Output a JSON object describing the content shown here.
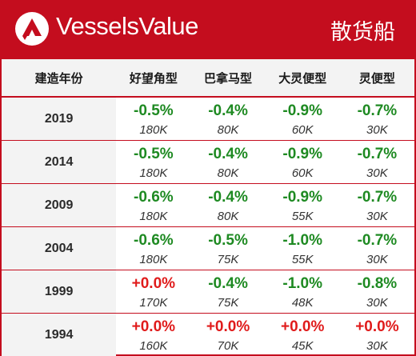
{
  "header": {
    "brand": "VesselsValue",
    "title": "散货船",
    "logo_icon": "vesselsvalue-logo-icon",
    "color": "#c40d1e"
  },
  "table": {
    "columns": [
      "建造年份",
      "好望角型",
      "巴拿马型",
      "大灵便型",
      "灵便型"
    ],
    "rows": [
      {
        "year": "2019",
        "cells": [
          {
            "change": "-0.5%",
            "value": "180K",
            "direction": "down"
          },
          {
            "change": "-0.4%",
            "value": "80K",
            "direction": "down"
          },
          {
            "change": "-0.9%",
            "value": "60K",
            "direction": "down"
          },
          {
            "change": "-0.7%",
            "value": "30K",
            "direction": "down"
          }
        ]
      },
      {
        "year": "2014",
        "cells": [
          {
            "change": "-0.5%",
            "value": "180K",
            "direction": "down"
          },
          {
            "change": "-0.4%",
            "value": "80K",
            "direction": "down"
          },
          {
            "change": "-0.9%",
            "value": "60K",
            "direction": "down"
          },
          {
            "change": "-0.7%",
            "value": "30K",
            "direction": "down"
          }
        ]
      },
      {
        "year": "2009",
        "cells": [
          {
            "change": "-0.6%",
            "value": "180K",
            "direction": "down"
          },
          {
            "change": "-0.4%",
            "value": "80K",
            "direction": "down"
          },
          {
            "change": "-0.9%",
            "value": "55K",
            "direction": "down"
          },
          {
            "change": "-0.7%",
            "value": "30K",
            "direction": "down"
          }
        ]
      },
      {
        "year": "2004",
        "cells": [
          {
            "change": "-0.6%",
            "value": "180K",
            "direction": "down"
          },
          {
            "change": "-0.5%",
            "value": "75K",
            "direction": "down"
          },
          {
            "change": "-1.0%",
            "value": "55K",
            "direction": "down"
          },
          {
            "change": "-0.7%",
            "value": "30K",
            "direction": "down"
          }
        ]
      },
      {
        "year": "1999",
        "cells": [
          {
            "change": "+0.0%",
            "value": "170K",
            "direction": "up"
          },
          {
            "change": "-0.4%",
            "value": "75K",
            "direction": "down"
          },
          {
            "change": "-1.0%",
            "value": "48K",
            "direction": "down"
          },
          {
            "change": "-0.8%",
            "value": "30K",
            "direction": "down"
          }
        ]
      },
      {
        "year": "1994",
        "cells": [
          {
            "change": "+0.0%",
            "value": "160K",
            "direction": "up"
          },
          {
            "change": "+0.0%",
            "value": "70K",
            "direction": "up"
          },
          {
            "change": "+0.0%",
            "value": "45K",
            "direction": "up"
          },
          {
            "change": "+0.0%",
            "value": "30K",
            "direction": "up"
          }
        ]
      }
    ],
    "colors": {
      "down": "#1e8a22",
      "up": "#e01b1b",
      "row_header_bg": "#f3f3f3"
    }
  }
}
